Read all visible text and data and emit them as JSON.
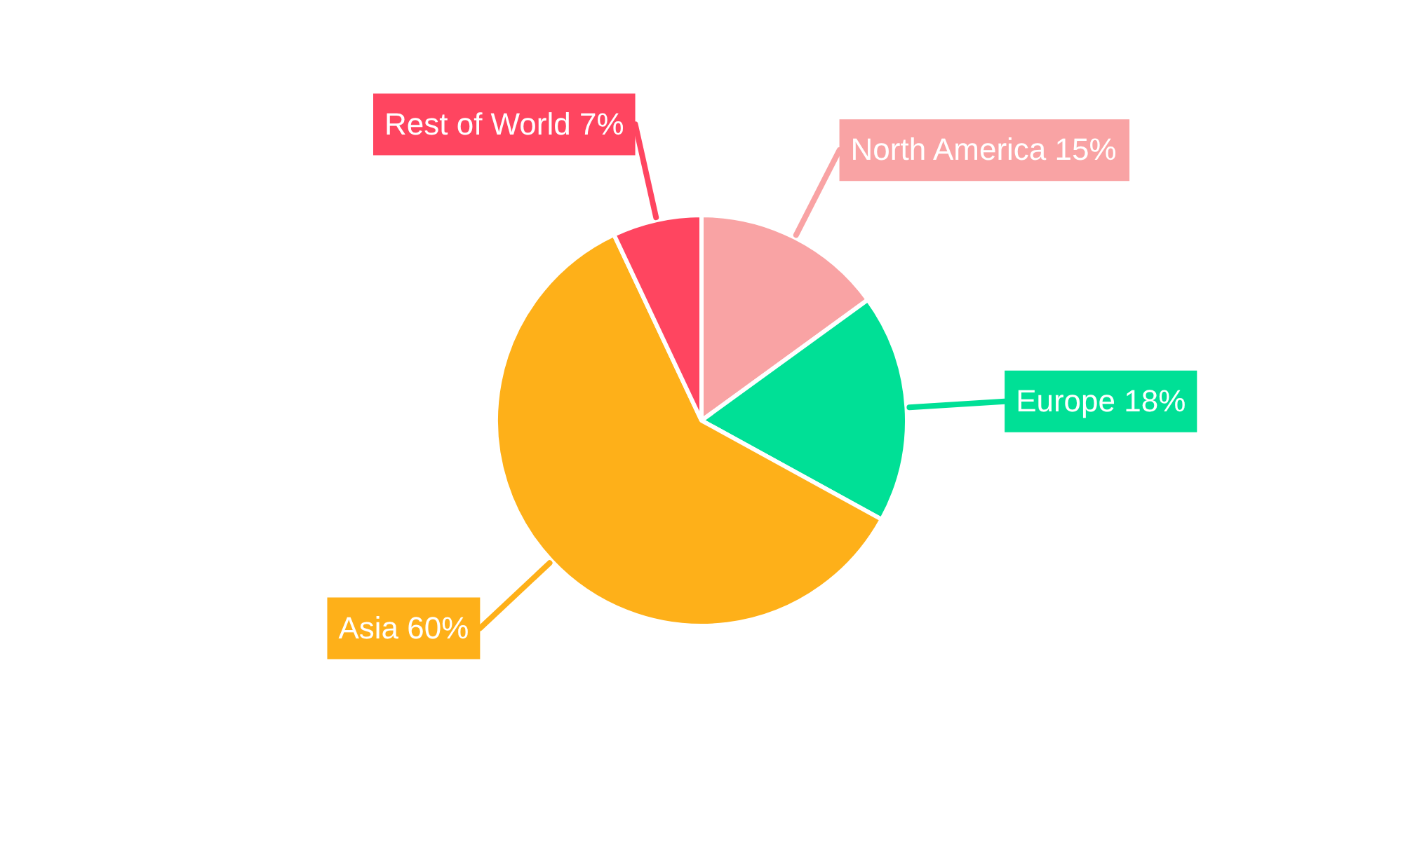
{
  "chart_data": {
    "type": "pie",
    "categories": [
      "North America",
      "Europe",
      "Asia",
      "Rest of World"
    ],
    "values": [
      15,
      18,
      60,
      7
    ],
    "colors": [
      "#f9a3a4",
      "#00e096",
      "#feb019",
      "#ff4560"
    ],
    "value_labels": [
      "15%",
      "18%",
      "60%",
      "7%"
    ],
    "legend": false
  }
}
